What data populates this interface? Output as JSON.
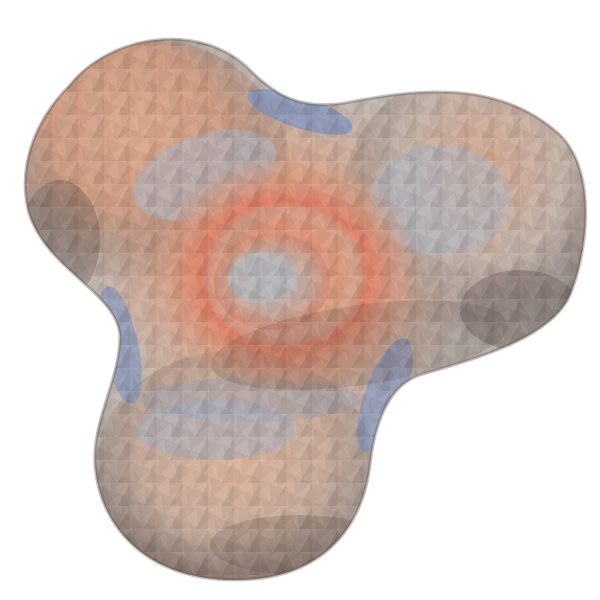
{
  "scene": {
    "object": "triangulated-trilobed-surface",
    "render_style": "faceted-mesh",
    "colormap": "cool-warm",
    "background_color": "#ffffff"
  },
  "colors": {
    "warm_peak": "#e2846a",
    "warm": "#d7a489",
    "neutral": "#c8c0b8",
    "cool": "#a6b3c4",
    "cool_deep": "#6e8bbd",
    "shadow": "#5a4b45"
  },
  "icons": {
    "mesh": "surface-mesh-icon"
  }
}
